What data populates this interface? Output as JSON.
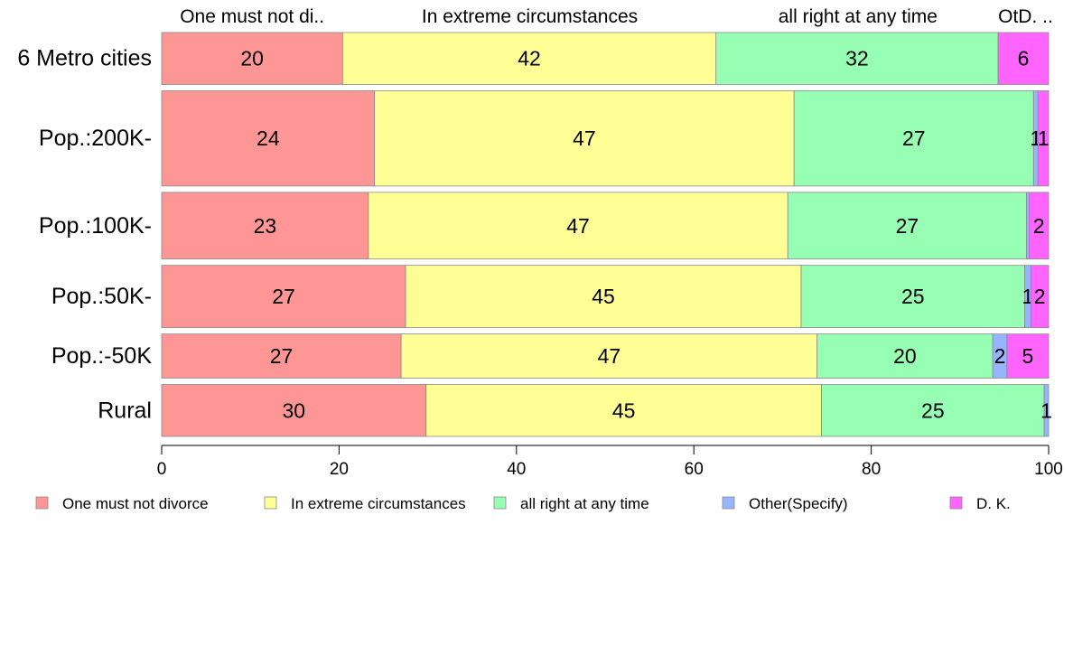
{
  "chart_data": {
    "type": "bar",
    "orientation": "horizontal",
    "stacked": true,
    "title": "",
    "xlabel": "",
    "ylabel": "",
    "xlim": [
      0,
      100
    ],
    "x_ticks": [
      0,
      20,
      40,
      60,
      80,
      100
    ],
    "grid": false,
    "legend_position": "bottom",
    "top_labels": [
      {
        "text": "One must not di..",
        "x": 10.2
      },
      {
        "text": "In extreme circumstances",
        "x": 41.5
      },
      {
        "text": "all right at any time",
        "x": 78.5
      },
      {
        "text": "OtD. ..",
        "x": 97.4
      }
    ],
    "categories": [
      "6 Metro cities",
      "Pop.:200K-",
      "Pop.:100K-",
      "Pop.:50K-",
      "Pop.:-50K",
      "Rural"
    ],
    "row_weights": [
      0.6,
      1.1,
      0.77,
      0.72,
      0.51,
      0.6
    ],
    "series": [
      {
        "name": "One must not divorce",
        "color": "#FF9696",
        "values": [
          20.4,
          24.0,
          23.3,
          27.5,
          27.0,
          29.8
        ],
        "labels": [
          "20",
          "24",
          "23",
          "27",
          "27",
          "30"
        ]
      },
      {
        "name": "In extreme circumstances",
        "color": "#FFFF96",
        "values": [
          42.1,
          47.3,
          47.3,
          44.6,
          46.9,
          44.6
        ],
        "labels": [
          "42",
          "47",
          "47",
          "45",
          "47",
          "45"
        ]
      },
      {
        "name": "all right at any time",
        "color": "#96FFB4",
        "values": [
          31.8,
          27.0,
          26.9,
          25.2,
          19.8,
          25.1
        ],
        "labels": [
          "32",
          "27",
          "27",
          "25",
          "20",
          "25"
        ]
      },
      {
        "name": "Other(Specify)",
        "color": "#96B4FF",
        "values": [
          0.0,
          0.5,
          0.3,
          0.7,
          1.6,
          0.5
        ],
        "labels": [
          "",
          "1",
          "",
          "1",
          "2",
          "1"
        ]
      },
      {
        "name": "D. K.",
        "color": "#FF64FF",
        "values": [
          5.7,
          1.2,
          2.2,
          2.0,
          4.7,
          0.0
        ],
        "labels": [
          "6",
          "1",
          "2",
          "2",
          "5",
          ""
        ]
      }
    ]
  }
}
